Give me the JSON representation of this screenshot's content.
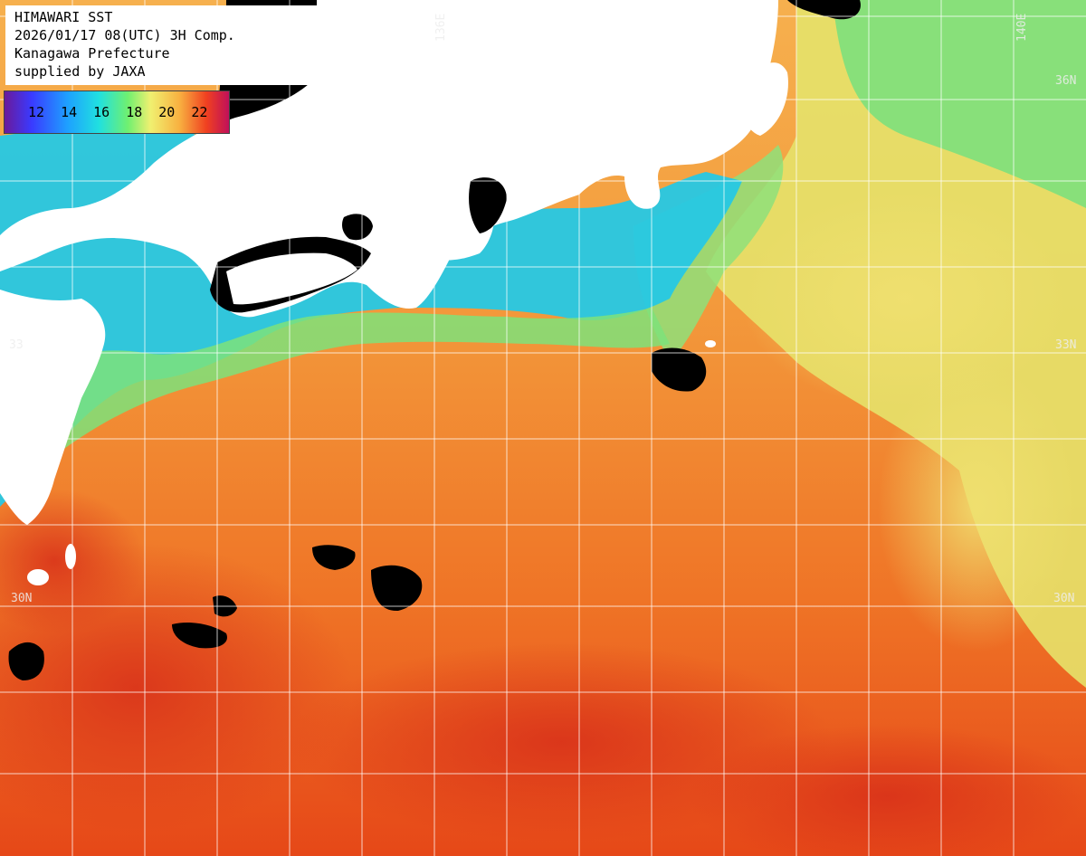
{
  "header": {
    "line1": "HIMAWARI SST",
    "line2": "2026/01/17 08(UTC) 3H Comp.",
    "line3": "Kanagawa Prefecture",
    "line4": "supplied by JAXA"
  },
  "legend": {
    "ticks": [
      "12",
      "14",
      "16",
      "18",
      "20",
      "22"
    ]
  },
  "grid_labels": {
    "lon_136": "136E",
    "lon_140": "140E",
    "lat_36": "36N",
    "lat_33_left": "33",
    "lat_33_right": "33N",
    "lat_30_left": "30N",
    "lat_30_right": "30N"
  },
  "colors": {
    "land": "#ffffff",
    "nodata": "#000000",
    "cold_water": "#25c8e6",
    "cool_water": "#7ee27a",
    "mild_water": "#e8e468",
    "warm_water": "#f39a3c",
    "hot_water": "#e8401a"
  }
}
